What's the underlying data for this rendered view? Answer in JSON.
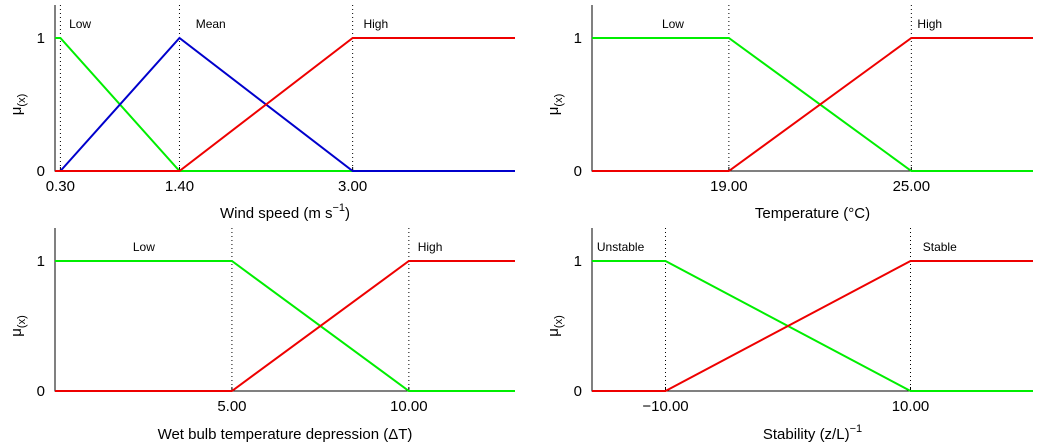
{
  "chart_data": [
    {
      "type": "line",
      "ylabel": "μ",
      "ylabel_sub": "(x)",
      "xlabel": "Wind speed (m s",
      "xlabel_sup": "−1",
      "xlabel_suffix": ")",
      "xlim": [
        0.25,
        4.5
      ],
      "ylim": [
        0,
        1
      ],
      "grid": false,
      "xticks": [
        0.3,
        1.4,
        3.0
      ],
      "xtick_labels": [
        "0.30",
        "1.40",
        "3.00"
      ],
      "yticks": [
        0,
        1
      ],
      "ytick_labels": [
        "0",
        "1"
      ],
      "breakpoints": [
        0.3,
        1.4,
        3.0
      ],
      "annotations": [
        {
          "text": "Low",
          "x": 0.38
        },
        {
          "text": "Mean",
          "x": 1.55
        },
        {
          "text": "High",
          "x": 3.1
        }
      ],
      "series": [
        {
          "name": "Low",
          "color": "#00ee00",
          "x": [
            0.25,
            0.3,
            1.4,
            4.5
          ],
          "y": [
            1,
            1,
            0,
            0
          ]
        },
        {
          "name": "Mean",
          "color": "#0000cc",
          "x": [
            0.3,
            1.4,
            3.0,
            4.5
          ],
          "y": [
            0,
            1,
            0,
            0
          ]
        },
        {
          "name": "High",
          "color": "#ee0000",
          "x": [
            0.25,
            1.4,
            3.0,
            4.5
          ],
          "y": [
            0,
            0,
            1,
            1
          ]
        }
      ]
    },
    {
      "type": "line",
      "ylabel": "μ",
      "ylabel_sub": "(x)",
      "xlabel": "Temperature (°C)",
      "xlabel_sup": "",
      "xlabel_suffix": "",
      "xlim": [
        14.5,
        29.0
      ],
      "ylim": [
        0,
        1
      ],
      "grid": false,
      "xticks": [
        19.0,
        25.0
      ],
      "xtick_labels": [
        "19.00",
        "25.00"
      ],
      "yticks": [
        0,
        1
      ],
      "ytick_labels": [
        "0",
        "1"
      ],
      "breakpoints": [
        19.0,
        25.0
      ],
      "annotations": [
        {
          "text": "Low",
          "x": 16.8
        },
        {
          "text": "High",
          "x": 25.2
        }
      ],
      "series": [
        {
          "name": "Low",
          "color": "#00ee00",
          "x": [
            14.5,
            19.0,
            25.0,
            29.0
          ],
          "y": [
            1,
            1,
            0,
            0
          ]
        },
        {
          "name": "High",
          "color": "#ee0000",
          "x": [
            14.5,
            19.0,
            25.0,
            29.0
          ],
          "y": [
            0,
            0,
            1,
            1
          ]
        }
      ]
    },
    {
      "type": "line",
      "ylabel": "μ",
      "ylabel_sub": "(x)",
      "xlabel": "Wet bulb temperature depression (ΔT)",
      "xlabel_sup": "",
      "xlabel_suffix": "",
      "xlim": [
        0,
        13.0
      ],
      "ylim": [
        0,
        1
      ],
      "grid": false,
      "xticks": [
        5.0,
        10.0
      ],
      "xtick_labels": [
        "5.00",
        "10.00"
      ],
      "yticks": [
        0,
        1
      ],
      "ytick_labels": [
        "0",
        "1"
      ],
      "breakpoints": [
        5.0,
        10.0
      ],
      "annotations": [
        {
          "text": "Low",
          "x": 2.2
        },
        {
          "text": "High",
          "x": 10.25
        }
      ],
      "series": [
        {
          "name": "Low",
          "color": "#00ee00",
          "x": [
            0,
            5.0,
            10.0,
            13.0
          ],
          "y": [
            1,
            1,
            0,
            0
          ]
        },
        {
          "name": "High",
          "color": "#ee0000",
          "x": [
            0,
            5.0,
            10.0,
            13.0
          ],
          "y": [
            0,
            0,
            1,
            1
          ]
        }
      ]
    },
    {
      "type": "line",
      "ylabel": "μ",
      "ylabel_sub": "(x)",
      "xlabel": "Stability (z/L)",
      "xlabel_sup": "−1",
      "xlabel_suffix": "",
      "xlim": [
        -16.0,
        20.0
      ],
      "ylim": [
        0,
        1
      ],
      "grid": false,
      "xticks": [
        -10.0,
        10.0
      ],
      "xtick_labels": [
        "−10.00",
        "10.00"
      ],
      "yticks": [
        0,
        1
      ],
      "ytick_labels": [
        "0",
        "1"
      ],
      "breakpoints": [
        -10.0,
        10.0
      ],
      "annotations": [
        {
          "text": "Unstable",
          "x": -15.6
        },
        {
          "text": "Stable",
          "x": 11.0
        }
      ],
      "series": [
        {
          "name": "Unstable",
          "color": "#00ee00",
          "x": [
            -16.0,
            -10.0,
            10.0,
            20.0
          ],
          "y": [
            1,
            1,
            0,
            0
          ]
        },
        {
          "name": "Stable",
          "color": "#ee0000",
          "x": [
            -16.0,
            -10.0,
            10.0,
            20.0
          ],
          "y": [
            0,
            0,
            1,
            1
          ]
        }
      ]
    }
  ]
}
